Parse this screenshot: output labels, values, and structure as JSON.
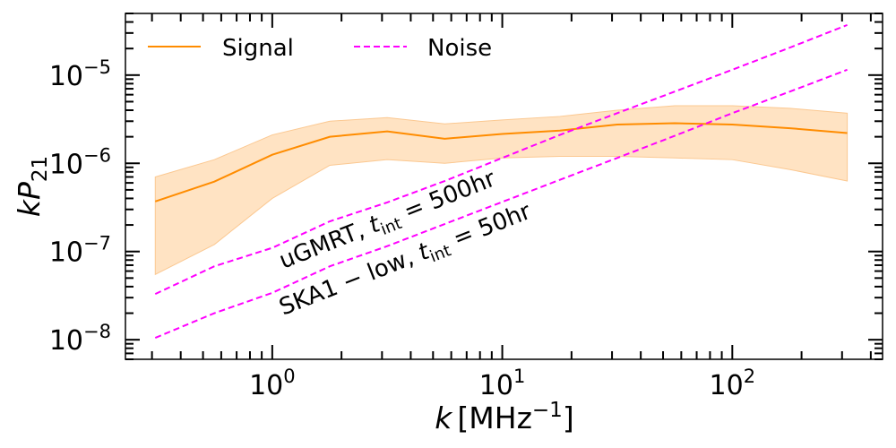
{
  "chart_data": {
    "type": "line",
    "x_scale": "log",
    "y_scale": "log",
    "xlim": [
      0.23,
      450
    ],
    "ylim": [
      6e-09,
      5e-05
    ],
    "x_ticks": [
      {
        "value": 1,
        "base": "10",
        "exp": "0"
      },
      {
        "value": 10,
        "base": "10",
        "exp": "1"
      },
      {
        "value": 100,
        "base": "10",
        "exp": "2"
      }
    ],
    "y_ticks": [
      {
        "value": 1e-08,
        "base": "10",
        "exp": "−8"
      },
      {
        "value": 1e-07,
        "base": "10",
        "exp": "−7"
      },
      {
        "value": 1e-06,
        "base": "10",
        "exp": "−6"
      },
      {
        "value": 1e-05,
        "base": "10",
        "exp": "−5"
      }
    ],
    "xlabel": {
      "var": "k",
      "unit": "[MHz",
      "unit_exp": "−1",
      "close": "]"
    },
    "ylabel": {
      "var": "kP",
      "sub": "21"
    },
    "legend": {
      "position": "top-left",
      "entries": [
        "Signal",
        "Noise"
      ]
    },
    "colors": {
      "signal": "#ff8c00",
      "band": "#ffdcb4",
      "noise": "#ff00ff"
    },
    "series": [
      {
        "name": "Signal",
        "x": [
          0.31,
          0.56,
          1.0,
          1.78,
          3.16,
          5.62,
          10.0,
          17.8,
          31.6,
          56.2,
          100,
          178,
          316
        ],
        "y": [
          3.7e-07,
          6.2e-07,
          1.25e-06,
          2e-06,
          2.3e-06,
          1.9e-06,
          2.15e-06,
          2.35e-06,
          2.75e-06,
          2.85e-06,
          2.75e-06,
          2.5e-06,
          2.2e-06
        ],
        "y_upper": [
          7e-07,
          1.1e-06,
          2.1e-06,
          3e-06,
          3.3e-06,
          2.8e-06,
          3.1e-06,
          3.4e-06,
          4e-06,
          4.5e-06,
          4.5e-06,
          4.2e-06,
          3.7e-06
        ],
        "y_lower": [
          5.5e-08,
          1.2e-07,
          4e-07,
          9.5e-07,
          1.1e-06,
          1e-06,
          1.15e-06,
          1.2e-06,
          1.2e-06,
          1.15e-06,
          1.1e-06,
          8.5e-07,
          6.3e-07
        ]
      },
      {
        "name": "Noise",
        "x": [
          0.31,
          0.56,
          1.0,
          1.78,
          3.16,
          5.62,
          10.0,
          17.8,
          31.6,
          56.2,
          100,
          178,
          316
        ],
        "y": [
          3.3e-08,
          6.8e-08,
          1.1e-07,
          2.2e-07,
          3.6e-07,
          6.3e-07,
          1.15e-06,
          2.1e-06,
          3.7e-06,
          6.5e-06,
          1.15e-05,
          2.05e-05,
          3.7e-05
        ]
      },
      {
        "name": "Noise",
        "x": [
          0.31,
          0.56,
          1.0,
          1.78,
          3.16,
          5.62,
          10.0,
          17.8,
          31.6,
          56.2,
          100,
          178,
          316
        ],
        "y": [
          1.05e-08,
          2e-08,
          3.4e-08,
          6.8e-08,
          1.15e-07,
          2.05e-07,
          3.65e-07,
          6.5e-07,
          1.15e-06,
          2.05e-06,
          3.7e-06,
          6.5e-06,
          1.15e-05
        ]
      }
    ],
    "annotations": [
      {
        "id": "ugmrt",
        "prefix": "uGMRT, ",
        "var": "t",
        "sub": "int",
        "suffix": " = 500hr"
      },
      {
        "id": "ska",
        "prefix": "SKA1 − low, ",
        "var": "t",
        "sub": "int",
        "suffix": " = 50hr"
      }
    ]
  }
}
